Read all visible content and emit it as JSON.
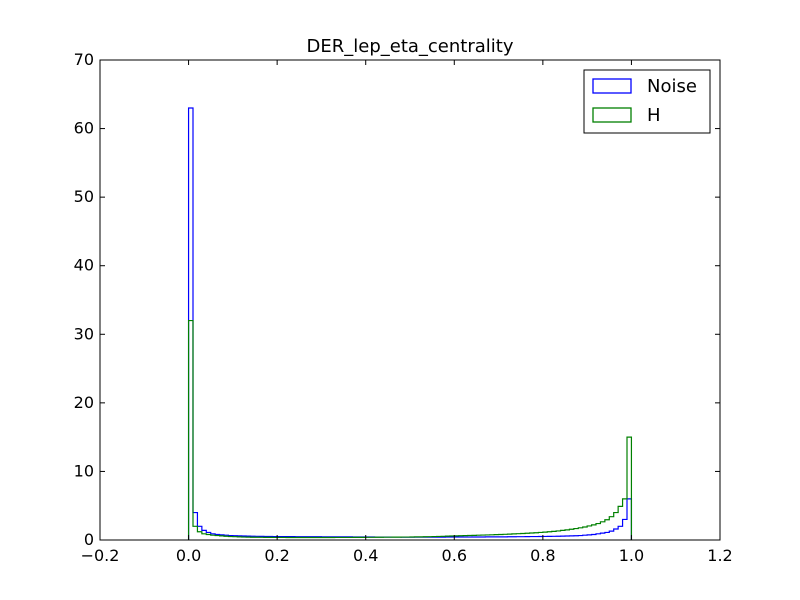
{
  "chart_data": {
    "type": "histogram",
    "title": "DER_lep_eta_centrality",
    "xlabel": "",
    "ylabel": "",
    "xlim": [
      -0.2,
      1.2
    ],
    "ylim": [
      0,
      70
    ],
    "x_ticks": [
      "−0.2",
      "0.0",
      "0.2",
      "0.4",
      "0.6",
      "0.8",
      "1.0",
      "1.2"
    ],
    "y_ticks": [
      "0",
      "10",
      "20",
      "30",
      "40",
      "50",
      "60",
      "70"
    ],
    "grid": false,
    "legend_position": "top-right",
    "histtype": "step",
    "bin_edges_range": [
      0.0,
      1.0
    ],
    "bins": 100,
    "series": [
      {
        "name": "Noise",
        "color": "#0000ff",
        "values": [
          63.0,
          4.0,
          2.0,
          1.4,
          1.1,
          0.9,
          0.8,
          0.75,
          0.7,
          0.65,
          0.62,
          0.6,
          0.58,
          0.56,
          0.55,
          0.54,
          0.53,
          0.52,
          0.51,
          0.5,
          0.5,
          0.5,
          0.49,
          0.49,
          0.48,
          0.48,
          0.48,
          0.47,
          0.47,
          0.47,
          0.46,
          0.46,
          0.46,
          0.45,
          0.45,
          0.45,
          0.45,
          0.44,
          0.44,
          0.44,
          0.44,
          0.44,
          0.43,
          0.43,
          0.43,
          0.43,
          0.43,
          0.43,
          0.42,
          0.42,
          0.42,
          0.42,
          0.42,
          0.42,
          0.42,
          0.42,
          0.42,
          0.42,
          0.43,
          0.43,
          0.43,
          0.43,
          0.43,
          0.43,
          0.44,
          0.44,
          0.44,
          0.45,
          0.45,
          0.45,
          0.46,
          0.46,
          0.47,
          0.47,
          0.48,
          0.48,
          0.49,
          0.5,
          0.5,
          0.51,
          0.52,
          0.53,
          0.54,
          0.55,
          0.56,
          0.58,
          0.6,
          0.62,
          0.65,
          0.7,
          0.75,
          0.8,
          0.9,
          1.0,
          1.1,
          1.3,
          1.6,
          2.0,
          3.0,
          6.0
        ]
      },
      {
        "name": "H",
        "color": "#008000",
        "values": [
          32.0,
          2.0,
          1.2,
          0.9,
          0.8,
          0.7,
          0.65,
          0.6,
          0.55,
          0.5,
          0.48,
          0.45,
          0.43,
          0.42,
          0.4,
          0.4,
          0.39,
          0.38,
          0.38,
          0.37,
          0.37,
          0.37,
          0.36,
          0.36,
          0.36,
          0.36,
          0.36,
          0.36,
          0.36,
          0.36,
          0.36,
          0.36,
          0.36,
          0.37,
          0.37,
          0.37,
          0.37,
          0.38,
          0.38,
          0.38,
          0.39,
          0.39,
          0.4,
          0.4,
          0.41,
          0.41,
          0.42,
          0.42,
          0.43,
          0.43,
          0.44,
          0.45,
          0.46,
          0.47,
          0.48,
          0.5,
          0.52,
          0.54,
          0.56,
          0.58,
          0.6,
          0.62,
          0.64,
          0.66,
          0.68,
          0.7,
          0.72,
          0.74,
          0.76,
          0.78,
          0.8,
          0.83,
          0.86,
          0.89,
          0.92,
          0.95,
          0.98,
          1.02,
          1.06,
          1.1,
          1.15,
          1.2,
          1.26,
          1.32,
          1.4,
          1.48,
          1.57,
          1.67,
          1.78,
          1.9,
          2.05,
          2.2,
          2.4,
          2.65,
          2.95,
          3.4,
          4.0,
          4.9,
          6.0,
          15.0
        ]
      }
    ]
  }
}
